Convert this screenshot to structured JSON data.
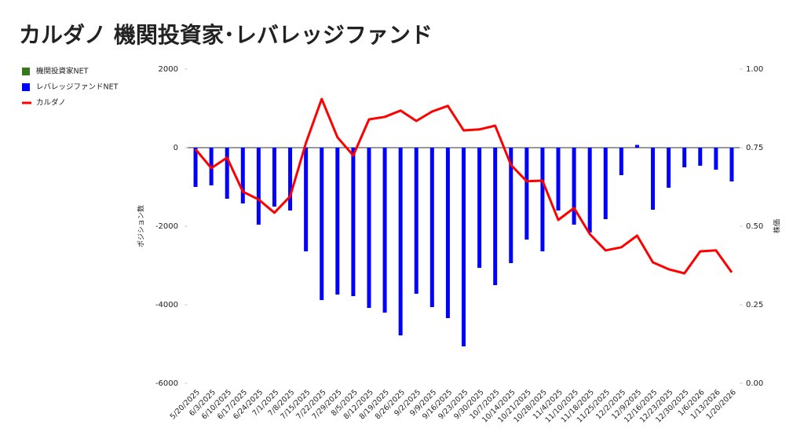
{
  "chart_data": {
    "type": "bar-line",
    "title": "カルダノ  機関投資家･レバレッジファンド",
    "y_label": "ポジション数",
    "y2_label": "株価",
    "categories": [
      "5/20/2025",
      "6/3/2025",
      "6/10/2025",
      "6/17/2025",
      "6/24/2025",
      "7/1/2025",
      "7/8/2025",
      "7/15/2025",
      "7/22/2025",
      "7/29/2025",
      "8/5/2025",
      "8/12/2025",
      "8/19/2025",
      "8/26/2025",
      "9/2/2025",
      "9/9/2025",
      "9/16/2025",
      "9/23/2025",
      "9/30/2025",
      "10/7/2025",
      "10/14/2025",
      "10/21/2025",
      "10/28/2025",
      "11/4/2025",
      "11/10/2025",
      "11/18/2025",
      "11/25/2025",
      "12/2/2025",
      "12/9/2025",
      "12/16/2025",
      "12/23/2025",
      "12/30/2025",
      "1/6/2026",
      "1/13/2026",
      "1/20/2026"
    ],
    "series": [
      {
        "name": "機関投資家NET",
        "color": "#38761d",
        "kind": "bar",
        "values": [
          null,
          null,
          null,
          null,
          null,
          null,
          null,
          null,
          null,
          null,
          null,
          null,
          null,
          null,
          null,
          null,
          null,
          null,
          null,
          null,
          null,
          null,
          null,
          null,
          null,
          null,
          null,
          null,
          null,
          null,
          null,
          null,
          null,
          null,
          null
        ]
      },
      {
        "name": "レバレッジファンドNET",
        "color": "#0000ff",
        "kind": "bar",
        "values": [
          -1000,
          -960,
          -1300,
          -1420,
          -1960,
          -1500,
          -1600,
          -2640,
          -3880,
          -3740,
          -3780,
          -4080,
          -4200,
          -4780,
          -3720,
          -4060,
          -4340,
          -5060,
          -3060,
          -3500,
          -2940,
          -2340,
          -2640,
          -1600,
          -1960,
          -2160,
          -1820,
          -700,
          70,
          -1580,
          -1020,
          -500,
          -460,
          -560,
          -860
        ]
      },
      {
        "name": "カルダノ",
        "color": "#ff0000",
        "kind": "line",
        "axis": "y2",
        "values": [
          0.745,
          0.685,
          0.718,
          0.61,
          0.585,
          0.543,
          0.595,
          0.765,
          0.905,
          0.783,
          0.725,
          0.84,
          0.848,
          0.868,
          0.835,
          0.865,
          0.883,
          0.805,
          0.808,
          0.82,
          0.695,
          0.643,
          0.645,
          0.52,
          0.558,
          0.475,
          0.423,
          0.433,
          0.47,
          0.385,
          0.363,
          0.35,
          0.42,
          0.423,
          0.353
        ]
      }
    ],
    "ylim": [
      -6000,
      2000
    ],
    "yticks": [
      -6000,
      -4000,
      -2000,
      0,
      2000
    ],
    "y2lim": [
      0,
      1
    ],
    "y2ticks": [
      {
        "value": 0,
        "label": "0.00"
      },
      {
        "value": 0.25,
        "label": "0.25"
      },
      {
        "value": 0.5,
        "label": "0.50"
      },
      {
        "value": 0.75,
        "label": "0.75"
      },
      {
        "value": 1,
        "label": "1.00"
      }
    ],
    "grid": false,
    "legend": "left"
  }
}
